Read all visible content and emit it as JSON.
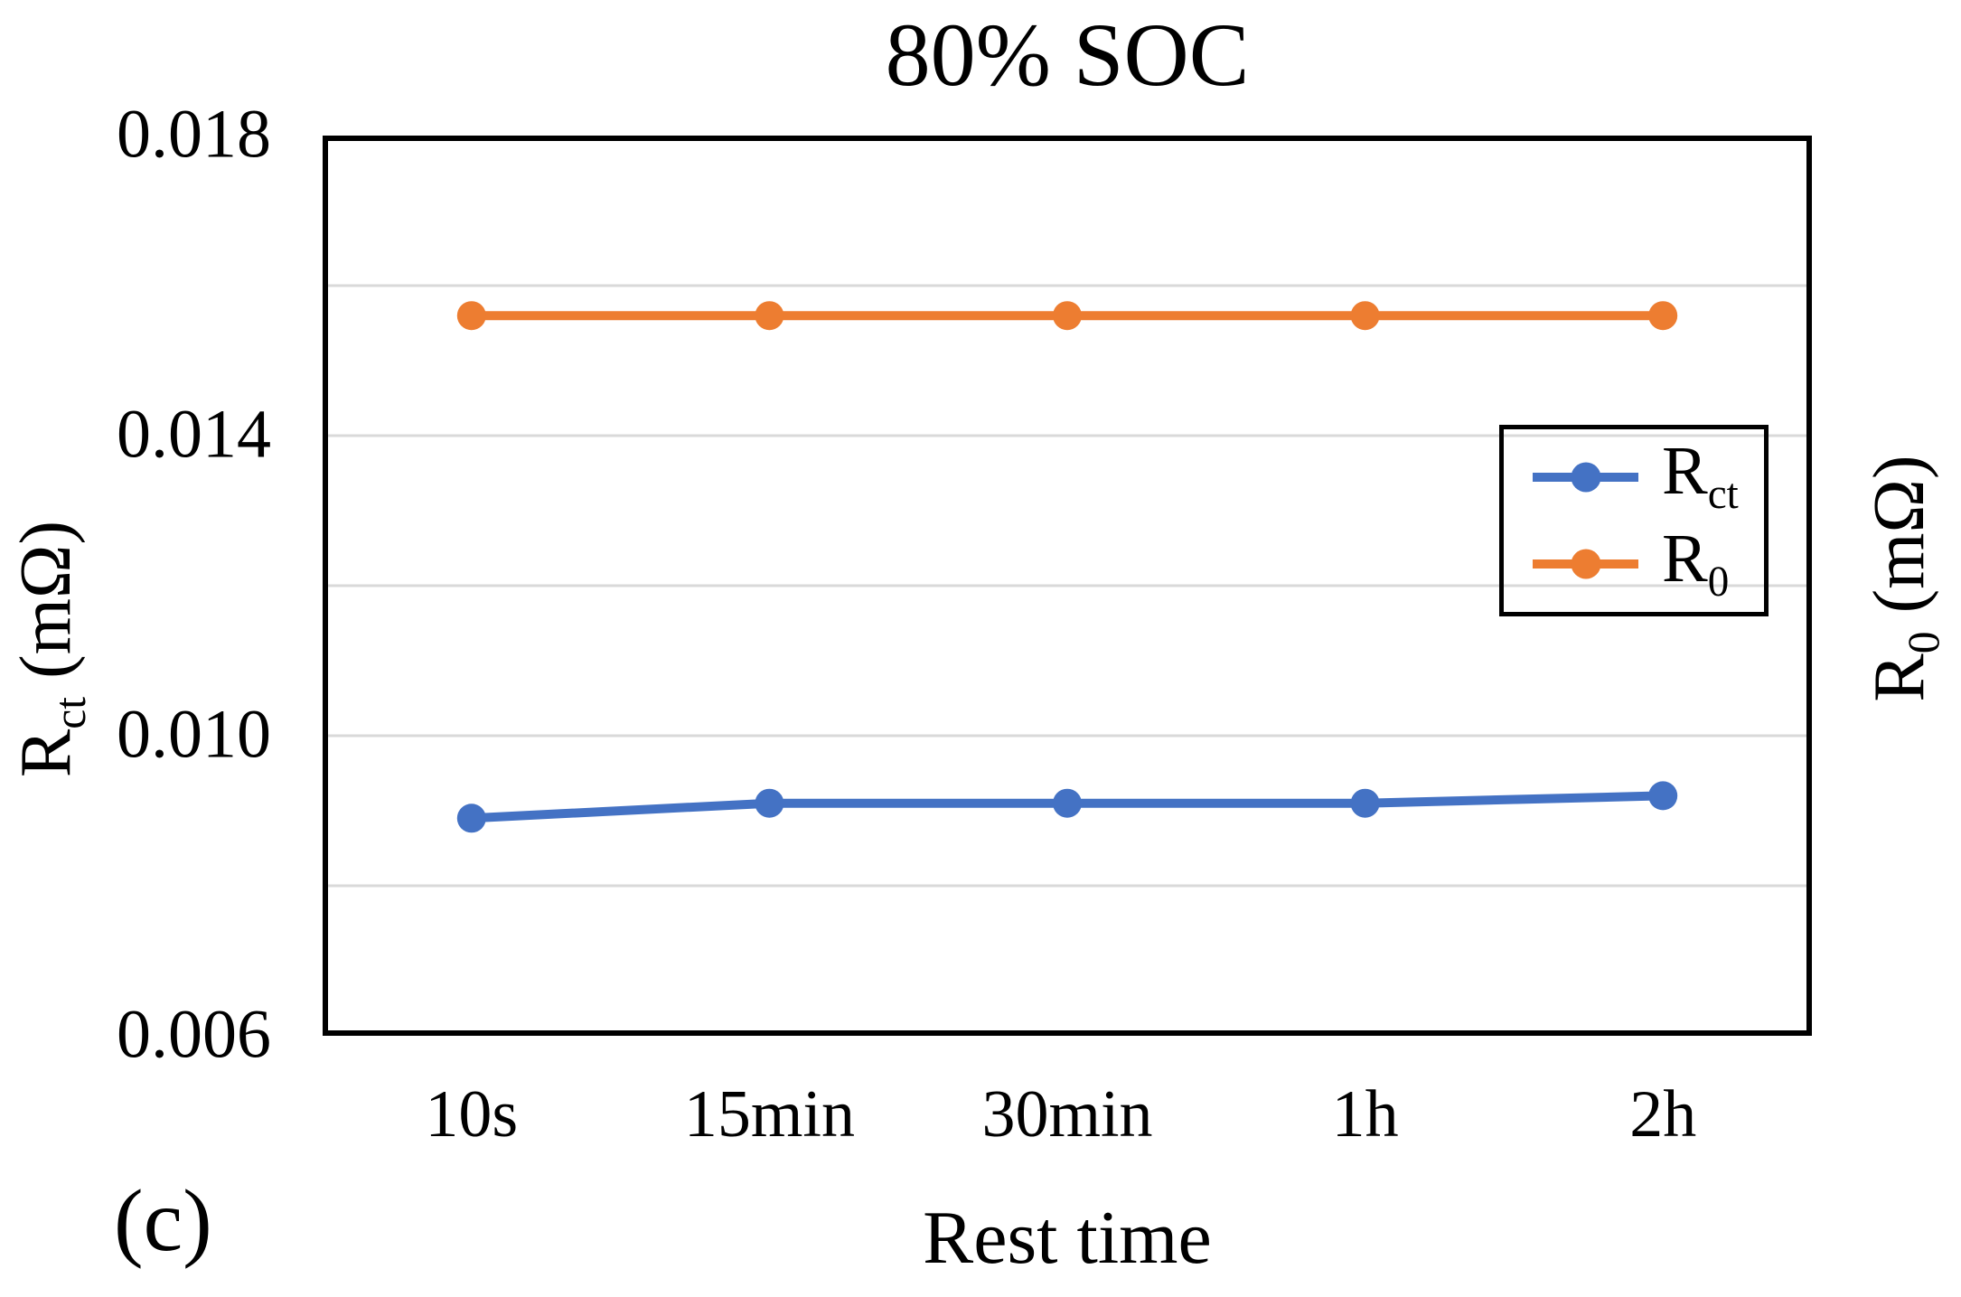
{
  "figure": {
    "title": "80% SOC",
    "panel_label": "(c)",
    "x_axis_title": "Rest time"
  },
  "chart_data": {
    "type": "line",
    "title": "80% SOC",
    "xlabel": "Rest time",
    "categories": [
      "10s",
      "15min",
      "30min",
      "1h",
      "2h"
    ],
    "series": [
      {
        "name": "Rct",
        "label_main": "R",
        "label_sub": "ct",
        "axis": "left",
        "color": "#4472C4",
        "values": [
          0.0089,
          0.0091,
          0.0091,
          0.0091,
          0.0092
        ]
      },
      {
        "name": "R0",
        "label_main": "R",
        "label_sub": "0",
        "axis": "right",
        "color": "#ED7D31",
        "values": [
          0.0156,
          0.0156,
          0.0156,
          0.0156,
          0.0156
        ]
      }
    ],
    "left_axis": {
      "label_main": "R",
      "label_sub": "ct",
      "label_suffix": " (mΩ)",
      "min": 0.006,
      "max": 0.018,
      "ticks": [
        {
          "text": "0.018",
          "value": 0.018
        },
        {
          "text": "0.014",
          "value": 0.014
        },
        {
          "text": "0.010",
          "value": 0.01
        },
        {
          "text": "0.006",
          "value": 0.006
        }
      ]
    },
    "right_axis": {
      "label_main": "R",
      "label_sub": "0",
      "label_suffix": " (mΩ)",
      "min": 0.006,
      "max": 0.018
    },
    "gridline_values": [
      0.016,
      0.014,
      0.012,
      0.01,
      0.008
    ],
    "legend_position": "inside-right",
    "grid": true
  },
  "colors": {
    "background": "#FFFFFF",
    "axis": "#000000",
    "gridline": "#D9D9D9",
    "text": "#000000"
  }
}
